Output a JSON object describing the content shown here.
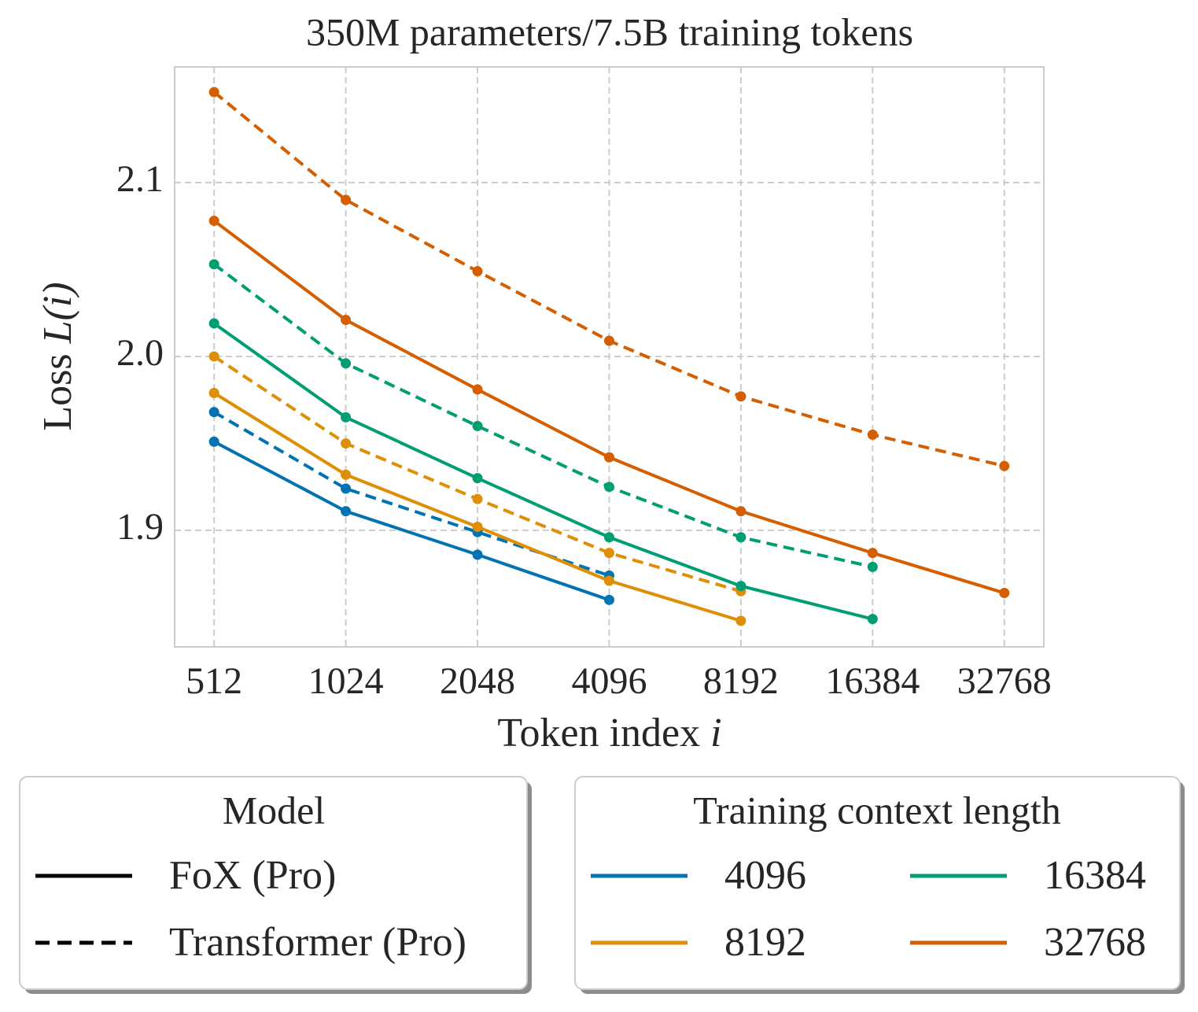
{
  "chart_data": {
    "type": "line",
    "title": "350M parameters/7.5B training tokens",
    "xlabel": [
      "Token index ",
      "i"
    ],
    "ylabel": [
      "Loss ",
      "L(i)"
    ],
    "x": [
      512,
      1024,
      2048,
      4096,
      8192,
      16384,
      32768
    ],
    "xscale": "log",
    "xlim": [
      416,
      40342
    ],
    "xticks": [
      512,
      1024,
      2048,
      4096,
      8192,
      16384,
      32768
    ],
    "ylim": [
      1.833,
      2.1665
    ],
    "yticks": [
      1.9,
      {
        "value": 2.0,
        "label": "2.0"
      },
      2.1
    ],
    "grid": true,
    "legends": [
      {
        "title": "Model",
        "columns": 1,
        "entries": [
          {
            "label": "FoX (Pro)",
            "color": "#000000",
            "dash": "solid"
          },
          {
            "label": "Transformer (Pro)",
            "color": "#000000",
            "dash": "dashed"
          }
        ]
      },
      {
        "title": "Training context length",
        "columns": 2,
        "entries": [
          {
            "label": "4096",
            "color": "#0173b2",
            "dash": "solid"
          },
          {
            "label": "8192",
            "color": "#de8f05",
            "dash": "solid"
          },
          {
            "label": "16384",
            "color": "#029e73",
            "dash": "solid"
          },
          {
            "label": "32768",
            "color": "#d55e00",
            "dash": "solid"
          }
        ]
      }
    ],
    "series": [
      {
        "model": "FoX (Pro)",
        "context": "4096",
        "color": "#0173b2",
        "dash": "solid",
        "values": [
          1.951,
          1.911,
          1.886,
          1.86,
          null,
          null,
          null
        ]
      },
      {
        "model": "Transformer (Pro)",
        "context": "4096",
        "color": "#0173b2",
        "dash": "dashed",
        "values": [
          1.968,
          1.924,
          1.899,
          1.874,
          null,
          null,
          null
        ]
      },
      {
        "model": "FoX (Pro)",
        "context": "8192",
        "color": "#de8f05",
        "dash": "solid",
        "values": [
          1.979,
          1.932,
          1.902,
          1.871,
          1.848,
          null,
          null
        ]
      },
      {
        "model": "Transformer (Pro)",
        "context": "8192",
        "color": "#de8f05",
        "dash": "dashed",
        "values": [
          2.0,
          1.95,
          1.918,
          1.887,
          1.865,
          null,
          null
        ]
      },
      {
        "model": "FoX (Pro)",
        "context": "16384",
        "color": "#029e73",
        "dash": "solid",
        "values": [
          2.019,
          1.965,
          1.93,
          1.896,
          1.868,
          1.849,
          null
        ]
      },
      {
        "model": "Transformer (Pro)",
        "context": "16384",
        "color": "#029e73",
        "dash": "dashed",
        "values": [
          2.053,
          1.996,
          1.96,
          1.925,
          1.896,
          1.879,
          null
        ]
      },
      {
        "model": "FoX (Pro)",
        "context": "32768",
        "color": "#d55e00",
        "dash": "solid",
        "values": [
          2.078,
          2.021,
          1.981,
          1.942,
          1.911,
          1.887,
          1.864
        ]
      },
      {
        "model": "Transformer (Pro)",
        "context": "32768",
        "color": "#d55e00",
        "dash": "dashed",
        "values": [
          2.152,
          2.09,
          2.049,
          2.009,
          1.977,
          1.955,
          1.937
        ]
      }
    ]
  }
}
